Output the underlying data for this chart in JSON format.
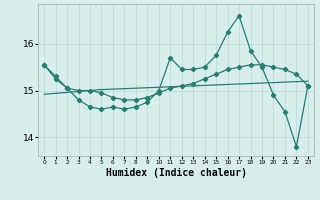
{
  "xlabel": "Humidex (Indice chaleur)",
  "x": [
    0,
    1,
    2,
    3,
    4,
    5,
    6,
    7,
    8,
    9,
    10,
    11,
    12,
    13,
    14,
    15,
    16,
    17,
    18,
    19,
    20,
    21,
    22,
    23
  ],
  "y_main": [
    15.55,
    15.25,
    15.05,
    14.8,
    14.65,
    14.6,
    14.65,
    14.6,
    14.65,
    14.75,
    15.0,
    15.7,
    15.45,
    15.45,
    15.5,
    15.75,
    16.25,
    16.6,
    15.85,
    15.5,
    14.9,
    14.55,
    13.8,
    15.1
  ],
  "y_smooth": [
    15.55,
    15.3,
    15.05,
    15.0,
    15.0,
    14.95,
    14.85,
    14.8,
    14.8,
    14.85,
    14.95,
    15.05,
    15.1,
    15.15,
    15.25,
    15.35,
    15.45,
    15.5,
    15.55,
    15.55,
    15.5,
    15.45,
    15.35,
    15.1
  ],
  "y_trend": [
    14.92,
    14.94,
    14.96,
    14.98,
    15.0,
    15.02,
    15.03,
    15.04,
    15.05,
    15.06,
    15.07,
    15.08,
    15.09,
    15.1,
    15.11,
    15.12,
    15.13,
    15.14,
    15.15,
    15.16,
    15.17,
    15.18,
    15.19,
    15.2
  ],
  "line_color": "#2a7d6e",
  "bg_color": "#d8eeec",
  "grid_color": "#b5d9d5",
  "ylim": [
    13.6,
    16.85
  ],
  "yticks": [
    14,
    15,
    16
  ],
  "xlim": [
    -0.5,
    23.5
  ],
  "marker": "D",
  "marker_size": 2.2,
  "linewidth": 0.9,
  "xlabel_fontsize": 7,
  "ytick_fontsize": 6.5,
  "xtick_fontsize": 4.2
}
